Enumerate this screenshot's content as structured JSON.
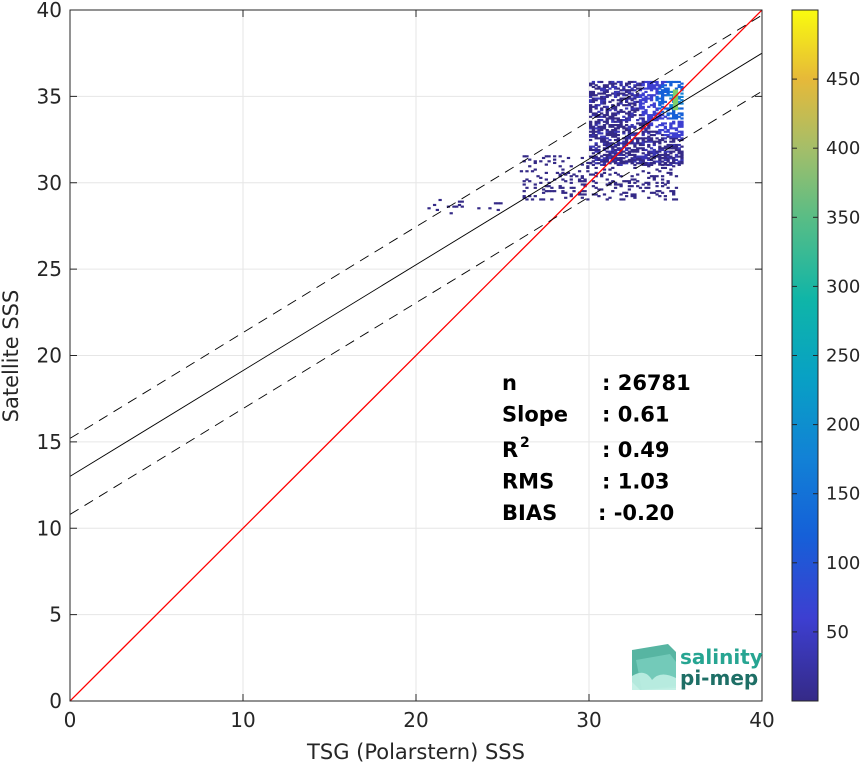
{
  "chart_data": {
    "type": "heatmap",
    "xlabel": "TSG (Polarstern) SSS",
    "ylabel": "Satellite SSS",
    "xlim": [
      0,
      40
    ],
    "ylim": [
      0,
      40
    ],
    "xticks": [
      "0",
      "10",
      "20",
      "30",
      "40"
    ],
    "yticks": [
      "0",
      "5",
      "10",
      "15",
      "20",
      "25",
      "30",
      "35",
      "40"
    ],
    "grid": true,
    "colorbar": {
      "range": [
        0,
        500
      ],
      "ticks": [
        "50",
        "100",
        "150",
        "200",
        "250",
        "300",
        "350",
        "400",
        "450"
      ],
      "colormap": "parula"
    },
    "lines": [
      {
        "kind": "identity",
        "x": [
          0,
          40
        ],
        "y": [
          0,
          40
        ],
        "color": "#ff0000",
        "style": "solid"
      },
      {
        "kind": "regression",
        "x": [
          0,
          40
        ],
        "y": [
          13.0,
          37.5
        ],
        "color": "#000000",
        "style": "solid"
      },
      {
        "kind": "regression-upper",
        "x": [
          0,
          40
        ],
        "y": [
          15.2,
          39.7
        ],
        "color": "#000000",
        "style": "dashed"
      },
      {
        "kind": "regression-lower",
        "x": [
          0,
          40
        ],
        "y": [
          10.8,
          35.3
        ],
        "color": "#000000",
        "style": "dashed"
      }
    ],
    "density_clusters": [
      {
        "x": [
          30,
          35.4
        ],
        "y": [
          31,
          35.8
        ],
        "weight": 1.0
      },
      {
        "x": [
          26,
          35
        ],
        "y": [
          29,
          31.5
        ],
        "weight": 0.3
      },
      {
        "x": [
          20.5,
          25
        ],
        "y": [
          28.2,
          29.0
        ],
        "weight": 0.1
      }
    ],
    "peak": {
      "x": 35.0,
      "y": 34.8,
      "count": 480
    },
    "stats": [
      {
        "key": "n",
        "value": ": 26781"
      },
      {
        "key": "Slope",
        "value": ": 0.61"
      },
      {
        "key": "R",
        "sup": "2",
        "value": ": 0.49"
      },
      {
        "key": "RMS",
        "value": ": 1.03"
      },
      {
        "key": "BIAS",
        "value": ": -0.20"
      }
    ]
  },
  "logo": {
    "line1": "salinity",
    "line2": "pi-mep"
  }
}
